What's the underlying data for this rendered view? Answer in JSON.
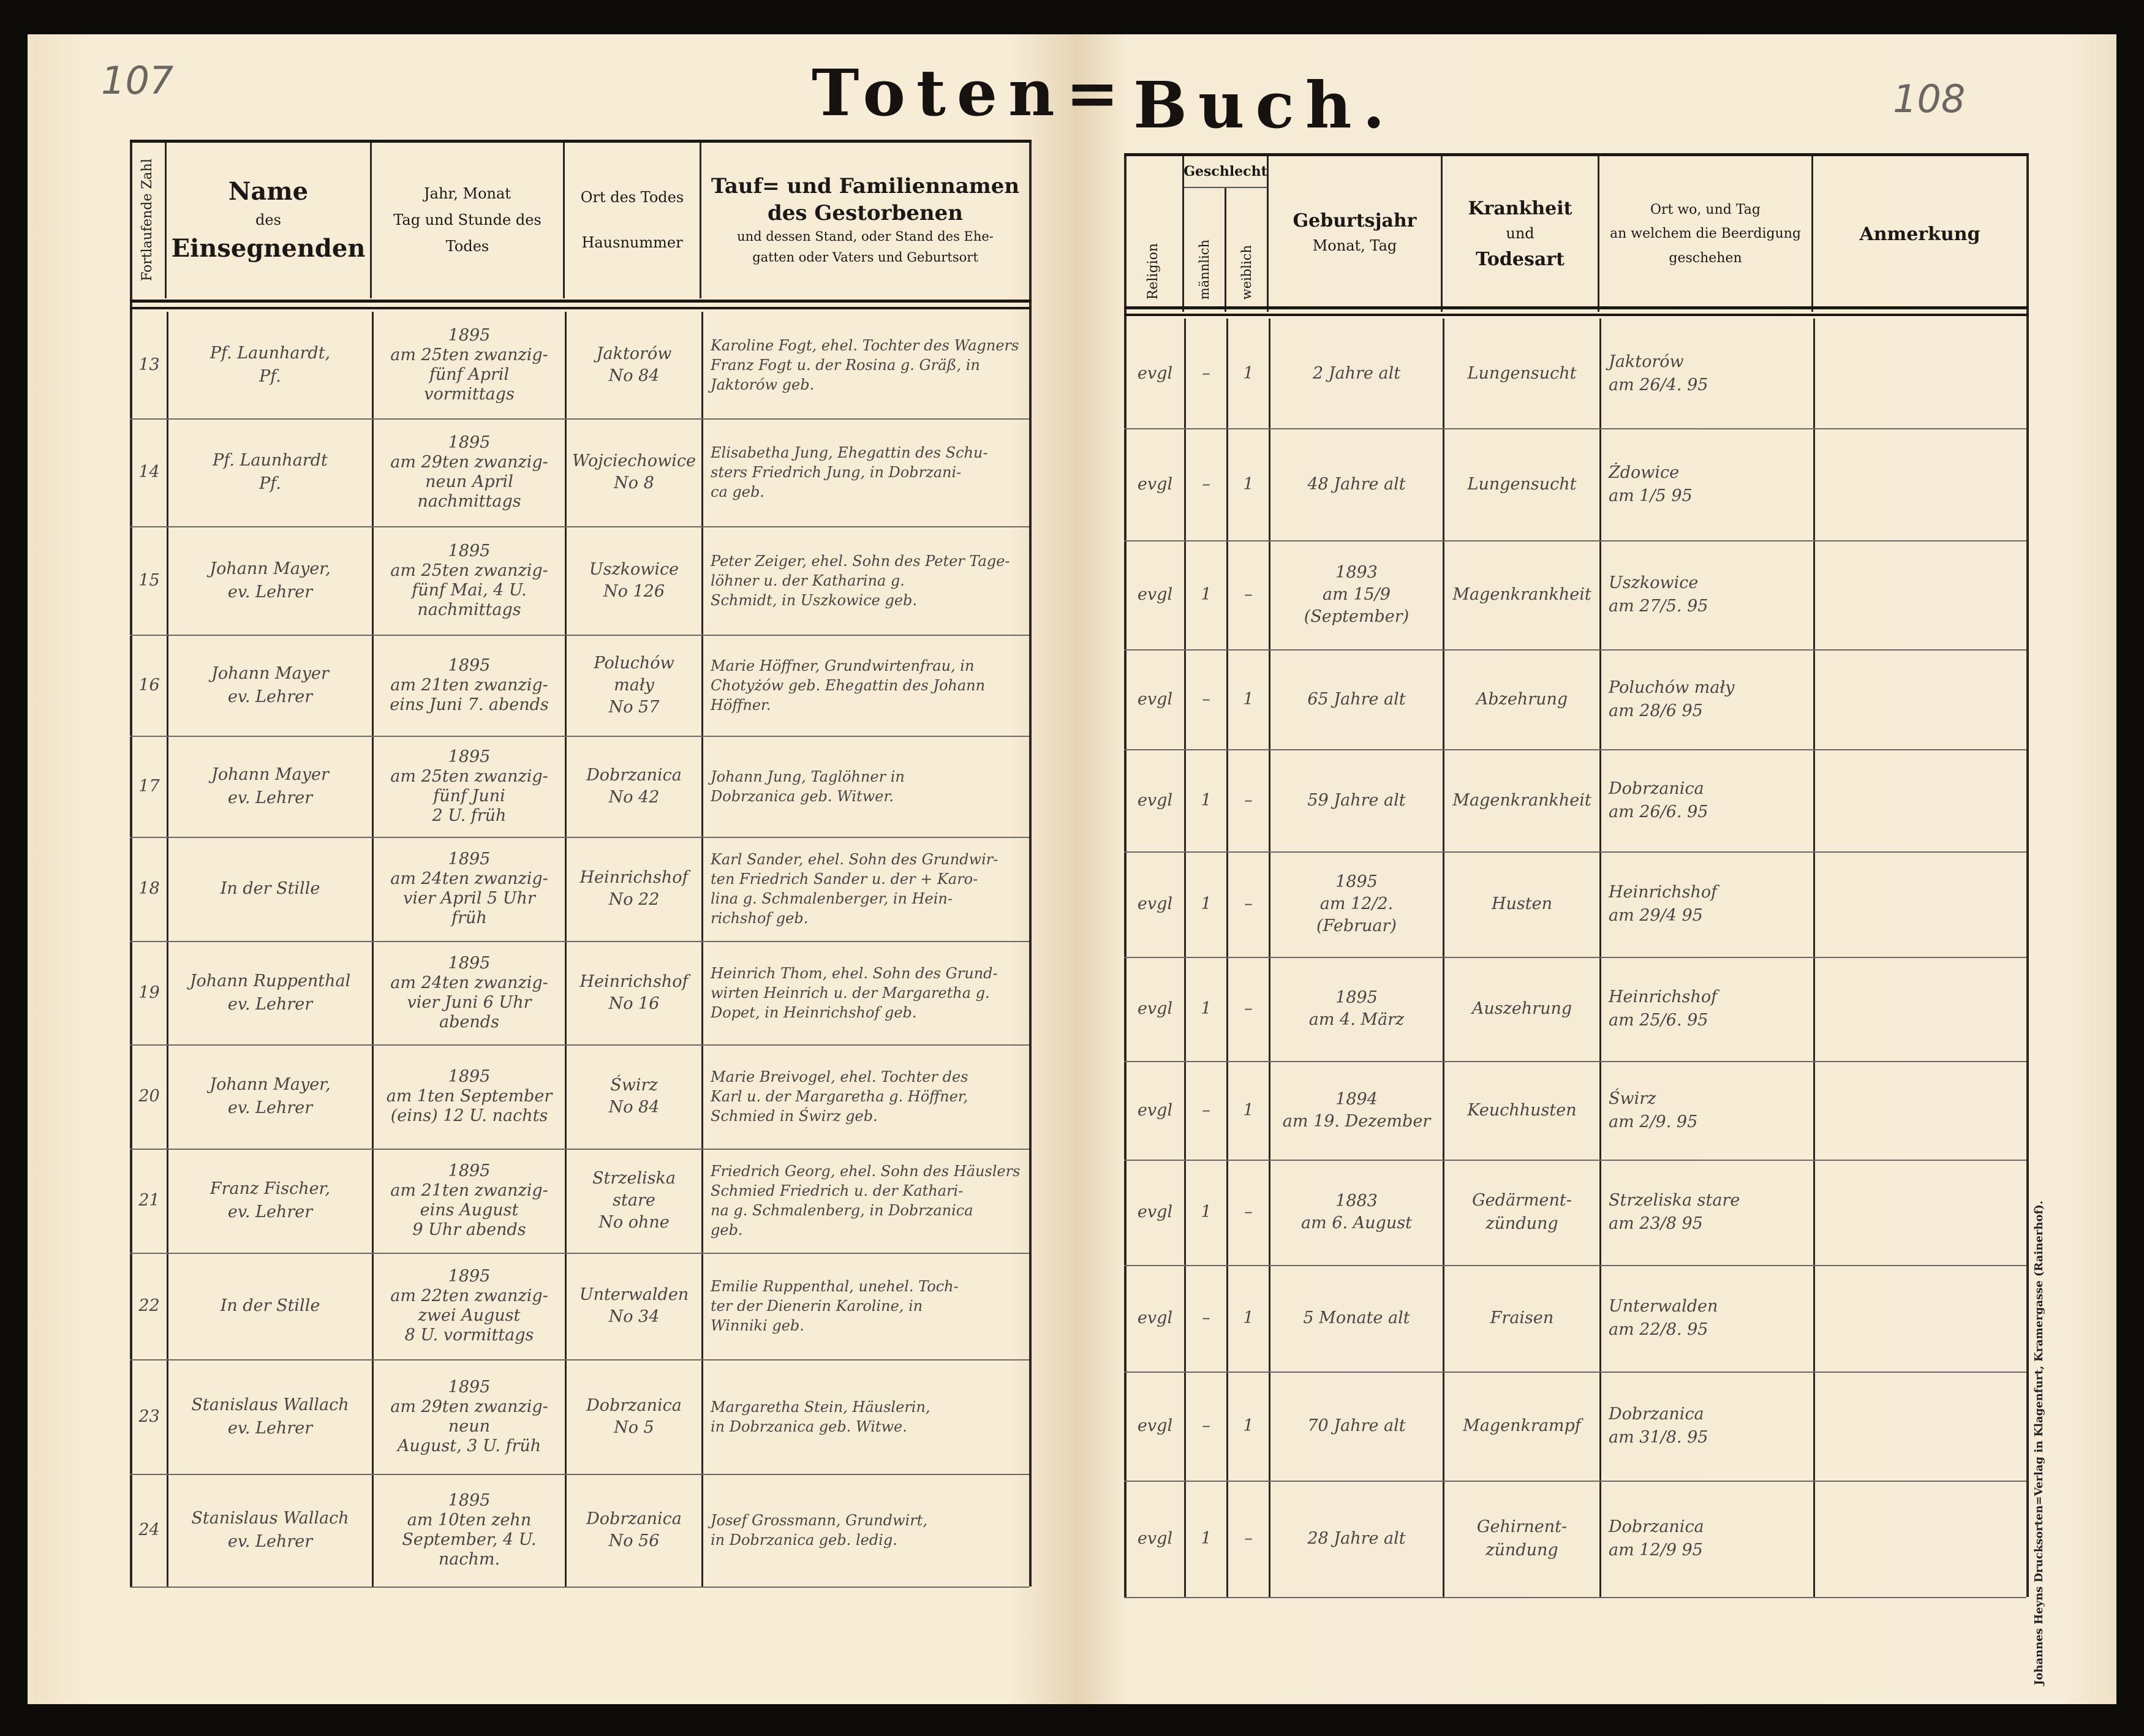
{
  "left_page": {
    "page_number": "107",
    "title": "Toten=",
    "headers": {
      "number": "Fortlaufende Zahl",
      "name_1": "Name",
      "name_2": "des",
      "name_3": "Einsegnenden",
      "date": "Jahr, Monat\nTag und Stunde des\nTodes",
      "place_1": "Ort des Todes",
      "place_2": "Hausnummer",
      "deceased_1": "Tauf= und Familiennamen",
      "deceased_2": "des Gestorbenen",
      "deceased_3": "und dessen Stand, oder Stand des Ehe-\ngatten oder Vaters und Geburtsort"
    }
  },
  "right_page": {
    "page_number": "108",
    "title": "Buch.",
    "headers": {
      "religion": "Religion",
      "sex": "Geschlecht",
      "male": "männlich",
      "female": "weiblich",
      "birth_1": "Geburtsjahr",
      "birth_2": "Monat, Tag",
      "disease_1": "Krankheit",
      "disease_2": "und",
      "disease_3": "Todesart",
      "burial": "Ort wo, und Tag\nan welchem die Beerdigung\ngeschehen",
      "remark": "Anmerkung"
    },
    "imprint": "Johannes Heyns Drucksorten=Verlag in Klagenfurt, Kramergasse (Rainerhof)."
  },
  "entries": [
    {
      "number": "13",
      "officiant": "Pf. Launhardt,\nPf.",
      "date": "1895\nam 25ten zwanzig-\nfünf April\nvormittags",
      "place": "Jaktorów\nNo 84",
      "deceased": "Karoline Fogt, ehel. Tochter des Wagners\nFranz Fogt u. der Rosina g. Gräß, in\nJaktorów geb.",
      "religion": "evgl",
      "male": "–",
      "female": "1",
      "birth": "2 Jahre alt",
      "disease": "Lungensucht",
      "burial": "Jaktorów\nam 26/4. 95",
      "remark": ""
    },
    {
      "number": "14",
      "officiant": "Pf. Launhardt\nPf.",
      "date": "1895\nam 29ten zwanzig-\nneun April\nnachmittags",
      "place": "Wojciechowice\nNo 8",
      "deceased": "Elisabetha Jung, Ehegattin des Schu-\nsters Friedrich Jung, in Dobrzani-\nca geb.",
      "religion": "evgl",
      "male": "–",
      "female": "1",
      "birth": "48 Jahre alt",
      "disease": "Lungensucht",
      "burial": "Żdowice\nam 1/5 95",
      "remark": ""
    },
    {
      "number": "15",
      "officiant": "Johann Mayer,\nev. Lehrer",
      "date": "1895\nam 25ten zwanzig-\nfünf Mai, 4 U.\nnachmittags",
      "place": "Uszkowice\nNo 126",
      "deceased": "Peter Zeiger, ehel. Sohn des Peter Tage-\nlöhner u. der Katharina g.\nSchmidt, in Uszkowice geb.",
      "religion": "evgl",
      "male": "1",
      "female": "–",
      "birth": "1893\nam 15/9\n(September)",
      "disease": "Magenkrankheit",
      "burial": "Uszkowice\nam 27/5. 95",
      "remark": ""
    },
    {
      "number": "16",
      "officiant": "Johann Mayer\nev. Lehrer",
      "date": "1895\nam 21ten zwanzig-\neins Juni 7. abends",
      "place": "Poluchów\nmały\nNo 57",
      "deceased": "Marie Höffner, Grundwirtenfrau, in\nChotyżów geb. Ehegattin des Johann\nHöffner.",
      "religion": "evgl",
      "male": "–",
      "female": "1",
      "birth": "65 Jahre alt",
      "disease": "Abzehrung",
      "burial": "Poluchów mały\nam 28/6 95",
      "remark": ""
    },
    {
      "number": "17",
      "officiant": "Johann Mayer\nev. Lehrer",
      "date": "1895\nam 25ten zwanzig-\nfünf Juni\n2 U. früh",
      "place": "Dobrzanica\nNo 42",
      "deceased": "Johann Jung, Taglöhner in\nDobrzanica geb. Witwer.",
      "religion": "evgl",
      "male": "1",
      "female": "–",
      "birth": "59 Jahre alt",
      "disease": "Magenkrankheit",
      "burial": "Dobrzanica\nam 26/6. 95",
      "remark": ""
    },
    {
      "number": "18",
      "officiant": "In der Stille",
      "date": "1895\nam 24ten zwanzig-\nvier April 5 Uhr\nfrüh",
      "place": "Heinrichshof\nNo 22",
      "deceased": "Karl Sander, ehel. Sohn des Grundwir-\nten Friedrich Sander u. der + Karo-\nlina g. Schmalenberger, in Hein-\nrichshof geb.",
      "religion": "evgl",
      "male": "1",
      "female": "–",
      "birth": "1895\nam 12/2.\n(Februar)",
      "disease": "Husten",
      "burial": "Heinrichshof\nam 29/4 95",
      "remark": ""
    },
    {
      "number": "19",
      "officiant": "Johann Ruppenthal\nev. Lehrer",
      "date": "1895\nam 24ten zwanzig-\nvier Juni 6 Uhr\nabends",
      "place": "Heinrichshof\nNo 16",
      "deceased": "Heinrich Thom, ehel. Sohn des Grund-\nwirten Heinrich u. der Margaretha g.\nDopet, in Heinrichshof geb.",
      "religion": "evgl",
      "male": "1",
      "female": "–",
      "birth": "1895\nam 4. März",
      "disease": "Auszehrung",
      "burial": "Heinrichshof\nam 25/6. 95",
      "remark": ""
    },
    {
      "number": "20",
      "officiant": "Johann Mayer,\nev. Lehrer",
      "date": "1895\nam 1ten September\n(eins) 12 U. nachts",
      "place": "Świrz\nNo 84",
      "deceased": "Marie Breivogel, ehel. Tochter des\nKarl u. der Margaretha g. Höffner,\nSchmied in Świrz geb.",
      "religion": "evgl",
      "male": "–",
      "female": "1",
      "birth": "1894\nam 19. Dezember",
      "disease": "Keuchhusten",
      "burial": "Świrz\nam 2/9. 95",
      "remark": ""
    },
    {
      "number": "21",
      "officiant": "Franz Fischer,\nev. Lehrer",
      "date": "1895\nam 21ten zwanzig-\neins August\n9 Uhr abends",
      "place": "Strzeliska\nstare\nNo ohne",
      "deceased": "Friedrich Georg, ehel. Sohn des Häuslers\nSchmied Friedrich u. der Kathari-\nna g. Schmalenberg, in Dobrzanica\ngeb.",
      "religion": "evgl",
      "male": "1",
      "female": "–",
      "birth": "1883\nam 6. August",
      "disease": "Gedärment-\nzündung",
      "burial": "Strzeliska stare\nam 23/8 95",
      "remark": ""
    },
    {
      "number": "22",
      "officiant": "In der Stille",
      "date": "1895\nam 22ten zwanzig-\nzwei August\n8 U. vormittags",
      "place": "Unterwalden\nNo 34",
      "deceased": "Emilie Ruppenthal, unehel. Toch-\nter der Dienerin Karoline, in\nWinniki geb.",
      "religion": "evgl",
      "male": "–",
      "female": "1",
      "birth": "5 Monate alt",
      "disease": "Fraisen",
      "burial": "Unterwalden\nam 22/8. 95",
      "remark": ""
    },
    {
      "number": "23",
      "officiant": "Stanislaus Wallach\nev. Lehrer",
      "date": "1895\nam 29ten zwanzig-neun\nAugust, 3 U. früh",
      "place": "Dobrzanica\nNo 5",
      "deceased": "Margaretha Stein, Häuslerin,\nin Dobrzanica geb. Witwe.",
      "religion": "evgl",
      "male": "–",
      "female": "1",
      "birth": "70 Jahre alt",
      "disease": "Magenkrampf",
      "burial": "Dobrzanica\nam 31/8. 95",
      "remark": ""
    },
    {
      "number": "24",
      "officiant": "Stanislaus Wallach\nev. Lehrer",
      "date": "1895\nam 10ten zehn\nSeptember, 4 U.\nnachm.",
      "place": "Dobrzanica\nNo 56",
      "deceased": "Josef Grossmann, Grundwirt,\nin Dobrzanica geb. ledig.",
      "religion": "evgl",
      "male": "1",
      "female": "–",
      "birth": "28 Jahre alt",
      "disease": "Gehirnent-\nzündung",
      "burial": "Dobrzanica\nam 12/9 95",
      "remark": ""
    }
  ]
}
